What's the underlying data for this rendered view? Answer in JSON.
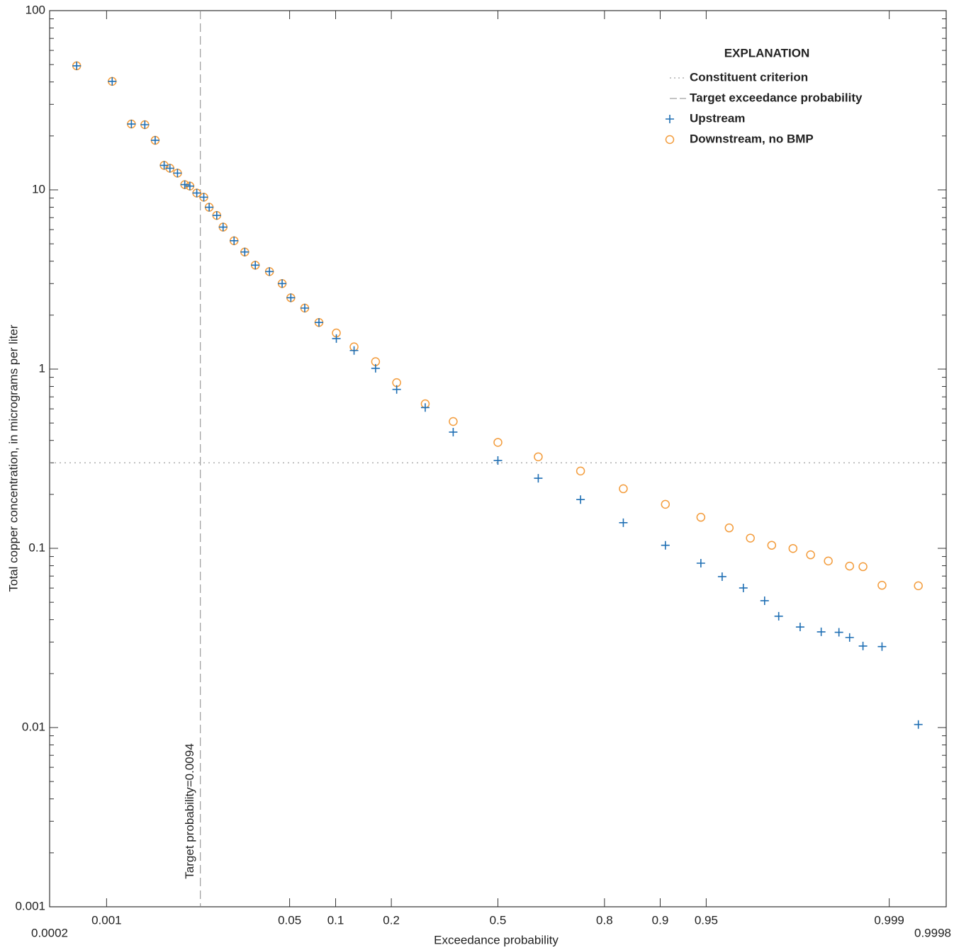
{
  "chart_data": {
    "type": "scatter",
    "xlabel": "Exceedance probability",
    "ylabel": "Total copper concentration, in micrograms per liter",
    "xscale": "probability",
    "yscale": "log",
    "xlim": [
      0.0002,
      0.9998
    ],
    "ylim": [
      0.001,
      100
    ],
    "xticks": [
      0.0002,
      0.001,
      0.05,
      0.1,
      0.2,
      0.5,
      0.8,
      0.9,
      0.95,
      0.999,
      0.9998
    ],
    "yticks": [
      0.001,
      0.01,
      0.1,
      1,
      10,
      100
    ],
    "legend_title": "EXPLANATION",
    "legend_position": "upper right",
    "reference_lines": [
      {
        "name": "Constituent criterion",
        "axis": "y",
        "value": 0.3,
        "style": "dotted",
        "color": "#888888"
      },
      {
        "name": "Target exceedance probability",
        "axis": "x",
        "value": 0.0094,
        "style": "dashed",
        "color": "#888888",
        "annotation": "Target probability=0.0094"
      }
    ],
    "series": [
      {
        "name": "Upstream",
        "marker": "plus",
        "color": "#1f6fb4",
        "x": [
          0.00044,
          0.00116,
          0.0019,
          0.00265,
          0.0034,
          0.0042,
          0.0048,
          0.0057,
          0.0067,
          0.0075,
          0.0087,
          0.0101,
          0.0113,
          0.0132,
          0.015,
          0.0186,
          0.0228,
          0.0277,
          0.0356,
          0.0442,
          0.051,
          0.0636,
          0.0788,
          0.101,
          0.128,
          0.167,
          0.212,
          0.283,
          0.362,
          0.5,
          0.625,
          0.743,
          0.839,
          0.907,
          0.9455,
          0.9617,
          0.9737,
          0.9824,
          0.9867,
          0.9915,
          0.99466,
          0.99646,
          0.99726,
          0.99803,
          0.99879,
          0.99955
        ],
        "values": [
          49.2,
          40.3,
          23.3,
          23.1,
          18.9,
          13.7,
          13.2,
          12.4,
          10.7,
          10.5,
          9.6,
          9.1,
          8.0,
          7.2,
          6.2,
          5.2,
          4.5,
          3.8,
          3.5,
          3.0,
          2.5,
          2.19,
          1.82,
          1.48,
          1.27,
          1.01,
          0.77,
          0.61,
          0.445,
          0.309,
          0.246,
          0.187,
          0.139,
          0.104,
          0.0826,
          0.0695,
          0.0601,
          0.051,
          0.0418,
          0.0364,
          0.0342,
          0.034,
          0.0318,
          0.0285,
          0.0283,
          0.0104
        ]
      },
      {
        "name": "Downstream, no BMP",
        "marker": "circle",
        "color": "#f39c3c",
        "x": [
          0.00044,
          0.00116,
          0.0019,
          0.00265,
          0.0034,
          0.0042,
          0.0048,
          0.0057,
          0.0067,
          0.0075,
          0.0087,
          0.0101,
          0.0113,
          0.0132,
          0.015,
          0.0186,
          0.0228,
          0.0277,
          0.0356,
          0.0442,
          0.051,
          0.0636,
          0.0788,
          0.101,
          0.128,
          0.167,
          0.212,
          0.283,
          0.362,
          0.5,
          0.625,
          0.743,
          0.839,
          0.907,
          0.9455,
          0.9661,
          0.9769,
          0.9847,
          0.9901,
          0.99323,
          0.99546,
          0.99726,
          0.99803,
          0.99879,
          0.99955
        ],
        "values": [
          49.2,
          40.3,
          23.3,
          23.1,
          18.9,
          13.7,
          13.2,
          12.4,
          10.7,
          10.5,
          9.6,
          9.1,
          8.0,
          7.2,
          6.2,
          5.2,
          4.5,
          3.8,
          3.5,
          3.0,
          2.5,
          2.19,
          1.82,
          1.59,
          1.33,
          1.1,
          0.84,
          0.64,
          0.51,
          0.39,
          0.324,
          0.27,
          0.215,
          0.176,
          0.149,
          0.13,
          0.114,
          0.104,
          0.0998,
          0.092,
          0.085,
          0.0796,
          0.079,
          0.0622,
          0.0618
        ]
      }
    ]
  }
}
